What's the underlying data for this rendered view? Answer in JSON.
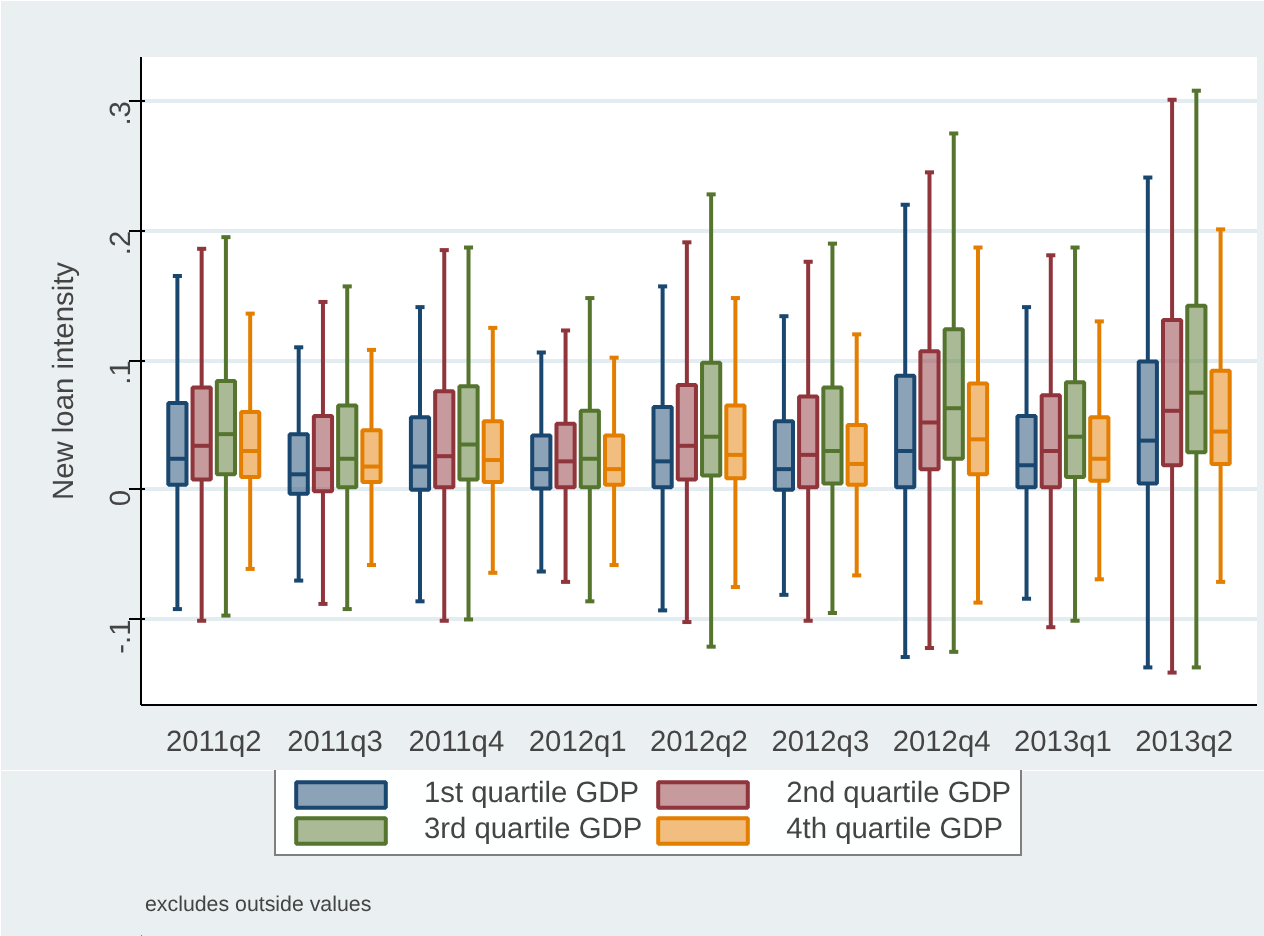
{
  "chart_data": {
    "type": "box",
    "ylabel": "New loan intensity",
    "categories": [
      "2011q2",
      "2011q3",
      "2011q4",
      "2012q1",
      "2012q2",
      "2012q3",
      "2012q4",
      "2013q1",
      "2013q2"
    ],
    "ylim": [
      -0.166,
      0.334
    ],
    "yticks": [
      {
        "value": -0.1,
        "label": "-.1"
      },
      {
        "value": 0,
        "label": "0"
      },
      {
        "value": 0.1,
        "label": ".1"
      },
      {
        "value": 0.2,
        "label": ".2"
      },
      {
        "value": 0.3,
        "label": ".3"
      }
    ],
    "grid": "y",
    "legend": "bottom",
    "annotations": [
      "excludes outside values"
    ],
    "series": [
      {
        "name": "1st quartile GDP",
        "color": "#1a476f",
        "boxes": [
          {
            "low": -0.092,
            "q1": 0.004,
            "median": 0.024,
            "q3": 0.067,
            "high": 0.165
          },
          {
            "low": -0.07,
            "q1": -0.003,
            "median": 0.012,
            "q3": 0.043,
            "high": 0.11
          },
          {
            "low": -0.086,
            "q1": 0.0,
            "median": 0.018,
            "q3": 0.056,
            "high": 0.141
          },
          {
            "low": -0.063,
            "q1": 0.001,
            "median": 0.016,
            "q3": 0.042,
            "high": 0.106
          },
          {
            "low": -0.093,
            "q1": 0.002,
            "median": 0.022,
            "q3": 0.064,
            "high": 0.157
          },
          {
            "low": -0.081,
            "q1": 0.0,
            "median": 0.016,
            "q3": 0.053,
            "high": 0.134
          },
          {
            "low": -0.129,
            "q1": 0.002,
            "median": 0.03,
            "q3": 0.088,
            "high": 0.22
          },
          {
            "low": -0.084,
            "q1": 0.002,
            "median": 0.019,
            "q3": 0.057,
            "high": 0.141
          },
          {
            "low": -0.137,
            "q1": 0.005,
            "median": 0.038,
            "q3": 0.099,
            "high": 0.241
          }
        ]
      },
      {
        "name": "2nd quartile GDP",
        "color": "#90353b",
        "boxes": [
          {
            "low": -0.101,
            "q1": 0.008,
            "median": 0.034,
            "q3": 0.079,
            "high": 0.186
          },
          {
            "low": -0.088,
            "q1": -0.001,
            "median": 0.016,
            "q3": 0.057,
            "high": 0.145
          },
          {
            "low": -0.101,
            "q1": 0.002,
            "median": 0.026,
            "q3": 0.076,
            "high": 0.185
          },
          {
            "low": -0.071,
            "q1": 0.002,
            "median": 0.022,
            "q3": 0.051,
            "high": 0.123
          },
          {
            "low": -0.102,
            "q1": 0.008,
            "median": 0.034,
            "q3": 0.081,
            "high": 0.191
          },
          {
            "low": -0.101,
            "q1": 0.002,
            "median": 0.027,
            "q3": 0.072,
            "high": 0.176
          },
          {
            "low": -0.122,
            "q1": 0.016,
            "median": 0.052,
            "q3": 0.107,
            "high": 0.245
          },
          {
            "low": -0.106,
            "q1": 0.002,
            "median": 0.03,
            "q3": 0.073,
            "high": 0.181
          },
          {
            "low": -0.141,
            "q1": 0.019,
            "median": 0.061,
            "q3": 0.131,
            "high": 0.301
          }
        ]
      },
      {
        "name": "3rd quartile GDP",
        "color": "#55752f",
        "boxes": [
          {
            "low": -0.097,
            "q1": 0.012,
            "median": 0.043,
            "q3": 0.084,
            "high": 0.195
          },
          {
            "low": -0.092,
            "q1": 0.002,
            "median": 0.024,
            "q3": 0.065,
            "high": 0.157
          },
          {
            "low": -0.1,
            "q1": 0.008,
            "median": 0.035,
            "q3": 0.08,
            "high": 0.187
          },
          {
            "low": -0.086,
            "q1": 0.002,
            "median": 0.024,
            "q3": 0.061,
            "high": 0.148
          },
          {
            "low": -0.121,
            "q1": 0.011,
            "median": 0.041,
            "q3": 0.098,
            "high": 0.228
          },
          {
            "low": -0.095,
            "q1": 0.005,
            "median": 0.03,
            "q3": 0.079,
            "high": 0.19
          },
          {
            "low": -0.125,
            "q1": 0.024,
            "median": 0.063,
            "q3": 0.124,
            "high": 0.275
          },
          {
            "low": -0.101,
            "q1": 0.01,
            "median": 0.041,
            "q3": 0.083,
            "high": 0.187
          },
          {
            "low": -0.137,
            "q1": 0.029,
            "median": 0.075,
            "q3": 0.142,
            "high": 0.308
          }
        ]
      },
      {
        "name": "4th quartile GDP",
        "color": "#e37e00",
        "boxes": [
          {
            "low": -0.061,
            "q1": 0.01,
            "median": 0.03,
            "q3": 0.06,
            "high": 0.136
          },
          {
            "low": -0.058,
            "q1": 0.006,
            "median": 0.018,
            "q3": 0.046,
            "high": 0.108
          },
          {
            "low": -0.064,
            "q1": 0.006,
            "median": 0.023,
            "q3": 0.053,
            "high": 0.125
          },
          {
            "low": -0.058,
            "q1": 0.004,
            "median": 0.016,
            "q3": 0.042,
            "high": 0.102
          },
          {
            "low": -0.075,
            "q1": 0.009,
            "median": 0.027,
            "q3": 0.065,
            "high": 0.148
          },
          {
            "low": -0.066,
            "q1": 0.004,
            "median": 0.02,
            "q3": 0.05,
            "high": 0.12
          },
          {
            "low": -0.087,
            "q1": 0.012,
            "median": 0.039,
            "q3": 0.082,
            "high": 0.187
          },
          {
            "low": -0.069,
            "q1": 0.007,
            "median": 0.024,
            "q3": 0.056,
            "high": 0.13
          },
          {
            "low": -0.071,
            "q1": 0.02,
            "median": 0.045,
            "q3": 0.092,
            "high": 0.201
          }
        ]
      }
    ]
  }
}
